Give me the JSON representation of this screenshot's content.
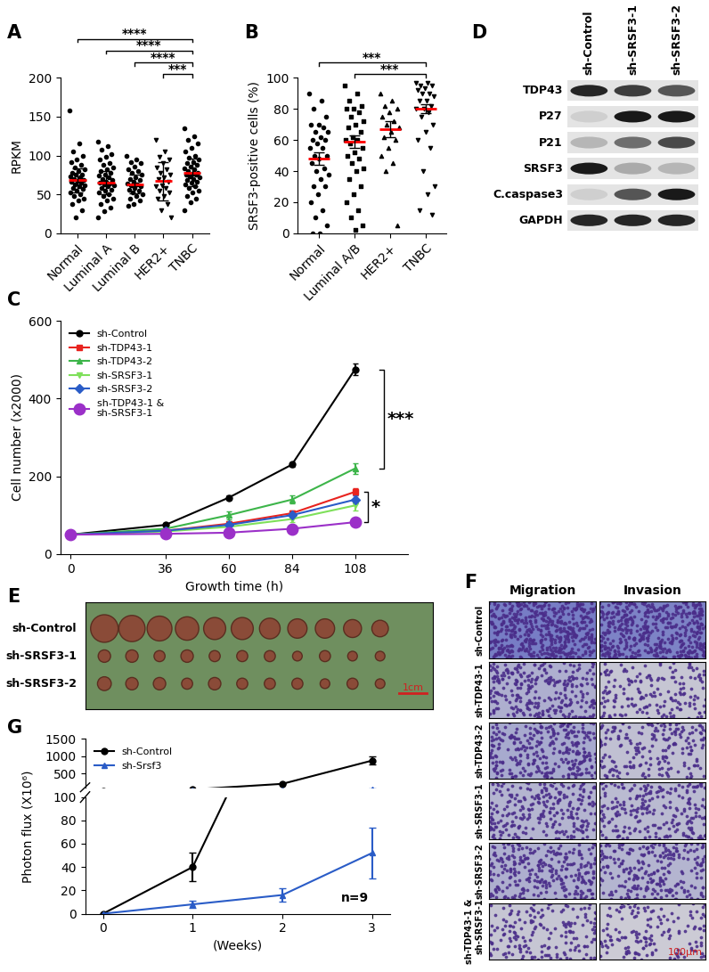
{
  "chart_data": [
    {
      "panel": "A",
      "type": "dot_plot",
      "ylabel": "RPKM",
      "ylim": [
        0,
        200
      ],
      "yticks": [
        0,
        50,
        100,
        150,
        200
      ],
      "color": "#000000",
      "series": [
        {
          "name": "Normal",
          "marker": "circle",
          "mean": 68,
          "error": 15,
          "values": [
            158,
            115,
            105,
            100,
            95,
            92,
            88,
            85,
            82,
            80,
            78,
            76,
            75,
            73,
            72,
            70,
            68,
            67,
            66,
            65,
            63,
            62,
            60,
            58,
            57,
            55,
            53,
            50,
            48,
            45,
            42,
            38,
            30,
            20
          ]
        },
        {
          "name": "Luminal A",
          "marker": "circle",
          "mean": 65,
          "error": 15,
          "values": [
            118,
            112,
            108,
            102,
            98,
            95,
            90,
            88,
            85,
            82,
            80,
            78,
            76,
            74,
            72,
            70,
            68,
            66,
            65,
            64,
            63,
            62,
            60,
            58,
            56,
            55,
            53,
            50,
            48,
            45,
            42,
            38,
            33,
            28,
            20
          ]
        },
        {
          "name": "Luminal B",
          "marker": "circle",
          "mean": 63,
          "error": 12,
          "values": [
            100,
            95,
            92,
            90,
            86,
            82,
            80,
            78,
            75,
            72,
            70,
            68,
            66,
            64,
            63,
            62,
            60,
            58,
            56,
            55,
            53,
            50,
            48,
            45,
            42,
            38,
            35
          ]
        },
        {
          "name": "HER2+",
          "marker": "triangle_down",
          "mean": 67,
          "error": 25,
          "values": [
            120,
            105,
            98,
            95,
            90,
            85,
            82,
            78,
            75,
            72,
            70,
            66,
            62,
            60,
            58,
            55,
            52,
            48,
            44,
            38,
            30,
            20
          ]
        },
        {
          "name": "TNBC",
          "marker": "circle",
          "mean": 78,
          "error": 18,
          "values": [
            135,
            125,
            120,
            115,
            110,
            105,
            100,
            97,
            95,
            92,
            90,
            88,
            86,
            84,
            82,
            80,
            78,
            77,
            76,
            75,
            73,
            72,
            70,
            68,
            66,
            65,
            63,
            60,
            58,
            55,
            52,
            48,
            45,
            40,
            30
          ]
        }
      ],
      "significance": [
        {
          "from": "HER2+",
          "to": "TNBC",
          "label": "***"
        },
        {
          "from": "Luminal B",
          "to": "TNBC",
          "label": "****"
        },
        {
          "from": "Luminal A",
          "to": "TNBC",
          "label": "****"
        },
        {
          "from": "Normal",
          "to": "TNBC",
          "label": "****"
        }
      ]
    },
    {
      "panel": "B",
      "type": "dot_plot",
      "ylabel": "SRSF3-positive cells (%)",
      "ylim": [
        0,
        100
      ],
      "yticks": [
        0,
        20,
        40,
        60,
        80,
        100
      ],
      "color": "#000000",
      "series": [
        {
          "name": "Normal",
          "marker": "circle",
          "mean": 48,
          "error": 4,
          "values": [
            90,
            85,
            80,
            75,
            70,
            70,
            68,
            65,
            65,
            62,
            60,
            60,
            58,
            55,
            55,
            50,
            50,
            48,
            45,
            42,
            40,
            38,
            35,
            30,
            30,
            25,
            20,
            15,
            10,
            5,
            0,
            0
          ]
        },
        {
          "name": "Luminal A/B",
          "marker": "square",
          "mean": 59,
          "error": 4,
          "values": [
            95,
            90,
            85,
            82,
            80,
            80,
            78,
            75,
            72,
            70,
            68,
            65,
            62,
            60,
            60,
            58,
            55,
            52,
            50,
            48,
            45,
            42,
            40,
            35,
            30,
            25,
            20,
            15,
            10,
            5,
            2
          ]
        },
        {
          "name": "HER2+",
          "marker": "triangle",
          "mean": 67,
          "error": 5,
          "values": [
            90,
            85,
            82,
            80,
            78,
            75,
            72,
            70,
            68,
            65,
            62,
            60,
            55,
            50,
            45,
            40,
            5
          ]
        },
        {
          "name": "TNBC",
          "marker": "triangle_down",
          "mean": 80,
          "error": 3,
          "values": [
            97,
            97,
            95,
            95,
            93,
            92,
            90,
            90,
            88,
            85,
            85,
            82,
            80,
            80,
            78,
            75,
            70,
            65,
            60,
            55,
            40,
            30,
            25,
            15,
            12
          ]
        }
      ],
      "significance": [
        {
          "from": "Luminal A/B",
          "to": "TNBC",
          "label": "***"
        },
        {
          "from": "Normal",
          "to": "TNBC",
          "label": "***"
        }
      ]
    },
    {
      "panel": "C",
      "type": "line",
      "xlabel": "Growth time (h)",
      "ylabel": "Cell number (x2000)",
      "x": [
        0,
        36,
        60,
        84,
        108
      ],
      "xlim": [
        -4,
        128
      ],
      "xticks": [
        0,
        36,
        60,
        84,
        108
      ],
      "ylim": [
        0,
        600
      ],
      "yticks": [
        0,
        200,
        400,
        600
      ],
      "legend": "upper left",
      "series": [
        {
          "name": "sh-Control",
          "color": "#000000",
          "marker": "circle",
          "values": [
            50,
            75,
            145,
            230,
            475
          ],
          "errors": [
            3,
            4,
            5,
            6,
            15
          ]
        },
        {
          "name": "sh-TDP43-1",
          "color": "#e8231f",
          "marker": "square",
          "values": [
            50,
            60,
            78,
            105,
            160
          ],
          "errors": [
            3,
            4,
            5,
            6,
            10
          ]
        },
        {
          "name": "sh-TDP43-2",
          "color": "#3db54a",
          "marker": "triangle",
          "values": [
            50,
            65,
            100,
            140,
            220
          ],
          "errors": [
            3,
            4,
            10,
            10,
            14
          ]
        },
        {
          "name": "sh-SRSF3-1",
          "color": "#7ee05a",
          "marker": "triangle_down",
          "values": [
            50,
            58,
            70,
            90,
            125
          ],
          "errors": [
            3,
            4,
            5,
            8,
            12
          ]
        },
        {
          "name": "sh-SRSF3-2",
          "color": "#2a5cc7",
          "marker": "diamond",
          "values": [
            50,
            60,
            75,
            100,
            140
          ],
          "errors": [
            3,
            4,
            5,
            6,
            10
          ]
        },
        {
          "name": "sh-TDP43-1 &\nsh-SRSF3-1",
          "color": "#9b30c8",
          "marker": "circle",
          "values": [
            50,
            52,
            55,
            65,
            82
          ],
          "errors": [
            3,
            3,
            4,
            5,
            6
          ]
        }
      ],
      "significance": [
        {
          "from": "sh-Control",
          "to": "sh-TDP43-2",
          "label": "***"
        },
        {
          "from": "sh-TDP43-1",
          "to": "sh-TDP43-1 &\nsh-SRSF3-1",
          "label": "*"
        }
      ]
    },
    {
      "panel": "G",
      "type": "line",
      "xlabel": "(Weeks)",
      "ylabel": "Photon flux (X10⁶)",
      "x": [
        0,
        1,
        2,
        3
      ],
      "xlim": [
        -0.2,
        3.2
      ],
      "xticks": [
        0,
        1,
        2,
        3
      ],
      "ylim": [
        0,
        1500
      ],
      "axis_break": 100,
      "yticks": [
        0,
        20,
        40,
        60,
        80,
        100,
        500,
        1000,
        1500
      ],
      "legend": "upper left",
      "annotation": "n=9",
      "series": [
        {
          "name": "sh-Control",
          "color": "#000000",
          "marker": "circle",
          "values": [
            0,
            40,
            200,
            870
          ],
          "errors": [
            0,
            12,
            15,
            120
          ]
        },
        {
          "name": "sh-Srsf3",
          "color": "#2a5cc7",
          "marker": "triangle",
          "values": [
            0,
            8,
            16,
            52
          ],
          "errors": [
            0,
            3,
            6,
            22
          ]
        }
      ]
    }
  ],
  "western_blot": {
    "panel": "D",
    "columns": [
      "sh-Control",
      "sh-SRSF3-1",
      "sh-SRSF3-2"
    ],
    "rows": [
      {
        "name": "TDP43",
        "intensity": [
          0.9,
          0.8,
          0.7
        ]
      },
      {
        "name": "P27",
        "intensity": [
          0.2,
          0.95,
          0.95
        ]
      },
      {
        "name": "P21",
        "intensity": [
          0.3,
          0.6,
          0.75
        ]
      },
      {
        "name": "SRSF3",
        "intensity": [
          0.95,
          0.35,
          0.3
        ]
      },
      {
        "name": "C.caspase3",
        "intensity": [
          0.2,
          0.7,
          0.95
        ]
      },
      {
        "name": "GAPDH",
        "intensity": [
          0.9,
          0.9,
          0.9
        ]
      }
    ]
  },
  "tumor_photo": {
    "panel": "E",
    "scale_bar": {
      "label": "1cm",
      "length_cm": 1
    },
    "rows": [
      {
        "name": "sh-Control",
        "diameters_cm": [
          1.0,
          0.95,
          0.9,
          0.85,
          0.8,
          0.8,
          0.75,
          0.7,
          0.7,
          0.65,
          0.6
        ]
      },
      {
        "name": "sh-SRSF3-1",
        "diameters_cm": [
          0.45,
          0.45,
          0.4,
          0.45,
          0.4,
          0.4,
          0.4,
          0.35,
          0.4,
          0.35,
          0.35
        ]
      },
      {
        "name": "sh-SRSF3-2",
        "diameters_cm": [
          0.5,
          0.45,
          0.45,
          0.4,
          0.45,
          0.4,
          0.4,
          0.4,
          0.35,
          0.4,
          0.35
        ]
      }
    ]
  },
  "micrographs": {
    "panel": "F",
    "columns": [
      "Migration",
      "Invasion"
    ],
    "scale_bar": "100μm",
    "rows": [
      {
        "name": "sh-Control",
        "density": [
          1.0,
          0.95
        ]
      },
      {
        "name": "sh-TDP43-1",
        "density": [
          0.55,
          0.35
        ]
      },
      {
        "name": "sh-TDP43-2",
        "density": [
          0.6,
          0.4
        ]
      },
      {
        "name": "sh-SRSF3-1",
        "density": [
          0.5,
          0.45
        ]
      },
      {
        "name": "sh-SRSF3-2",
        "density": [
          0.55,
          0.5
        ]
      },
      {
        "name": "sh-TDP43-1 &\nsh-SRSF3-1",
        "density": [
          0.35,
          0.3
        ]
      }
    ]
  }
}
